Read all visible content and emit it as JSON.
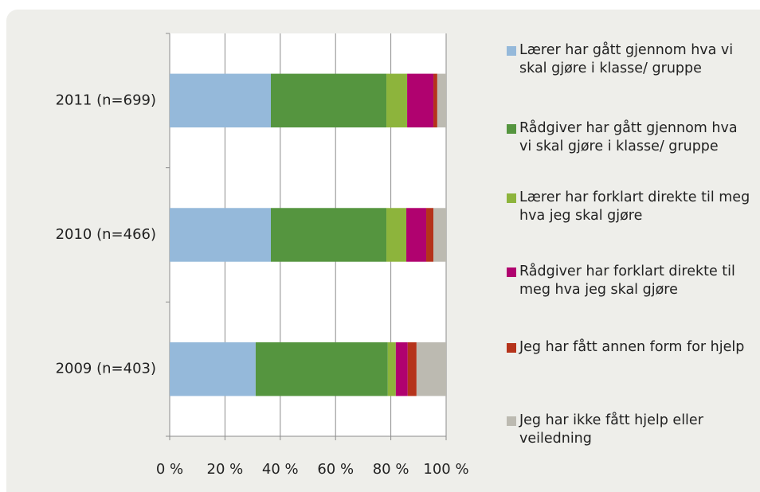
{
  "chart_data": {
    "type": "stacked_barh",
    "categories": [
      "2011 (n=699)",
      "2010 (n=466)",
      "2009 (n=403)"
    ],
    "series": [
      {
        "name": "Lærer har gått gjennom hva vi skal gjøre i klasse/ gruppe",
        "color": "#95b9da",
        "values": [
          36.6,
          36.6,
          31.1
        ]
      },
      {
        "name": "Rådgiver har gått gjennom hva vi skal gjøre i klasse/ gruppe",
        "color": "#55953f",
        "values": [
          41.8,
          41.8,
          47.8
        ]
      },
      {
        "name": "Lærer har forklart direkte til meg hva jeg skal gjøre",
        "color": "#8db43c",
        "values": [
          7.5,
          7.2,
          2.9
        ]
      },
      {
        "name": "Rådgiver har forklart direkte til meg hva jeg skal gjøre",
        "color": "#b0026f",
        "values": [
          9.5,
          7.2,
          4.3
        ]
      },
      {
        "name": "Jeg har fått annen form for hjelp",
        "color": "#b5331b",
        "values": [
          1.4,
          2.6,
          3.2
        ]
      },
      {
        "name": "Jeg har ikke fått hjelp eller veiledning",
        "color": "#bcbab1",
        "values": [
          3.2,
          4.6,
          10.7
        ]
      }
    ],
    "xlim": [
      0,
      100
    ],
    "xticks": [
      {
        "value": 0,
        "label": "0 %"
      },
      {
        "value": 20,
        "label": "20 %"
      },
      {
        "value": 40,
        "label": "40 %"
      },
      {
        "value": 60,
        "label": "60 %"
      },
      {
        "value": 80,
        "label": "80 %"
      },
      {
        "value": 100,
        "label": "100 %"
      }
    ],
    "grid": true
  }
}
